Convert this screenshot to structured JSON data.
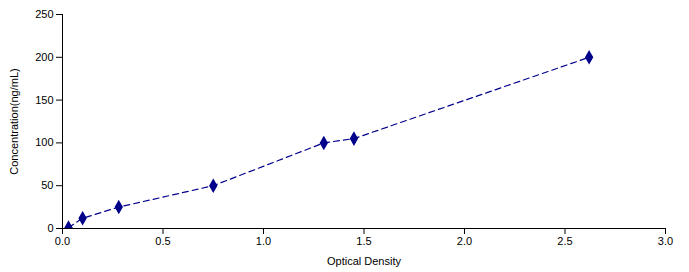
{
  "chart_data": {
    "type": "line",
    "x": [
      0.03,
      0.1,
      0.28,
      0.75,
      1.3,
      1.45,
      2.62
    ],
    "values": [
      1,
      12,
      25,
      50,
      100,
      105,
      200
    ],
    "color": "#00008B",
    "marker": "diamond",
    "line_style": "dashed",
    "xlabel": "Optical Density",
    "ylabel": "Concentration(ng/mL)",
    "xlim": [
      0,
      3
    ],
    "ylim": [
      0,
      250
    ],
    "xticks": [
      {
        "value": 0,
        "label": "0.0"
      },
      0.5,
      {
        "value": 1,
        "label": "1.0"
      },
      1.5,
      {
        "value": 2,
        "label": "2.0"
      },
      2.5,
      {
        "value": 3,
        "label": "3.0"
      }
    ],
    "yticks": [
      0,
      50,
      100,
      150,
      200,
      250
    ]
  }
}
